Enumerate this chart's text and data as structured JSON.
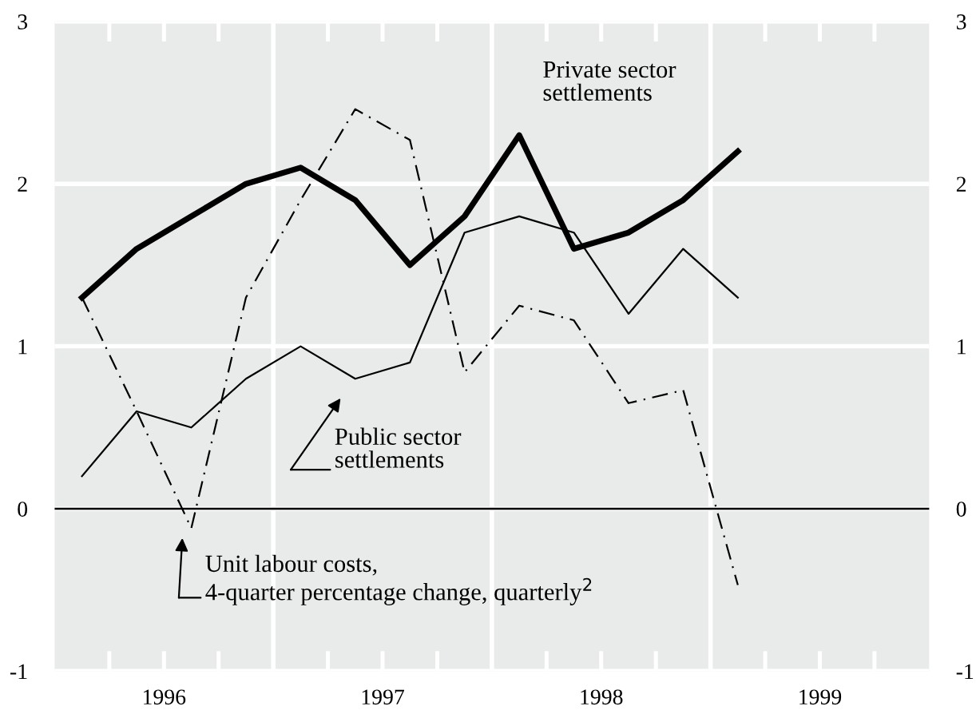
{
  "chart_data": {
    "type": "line",
    "x": [
      1996.125,
      1996.375,
      1996.625,
      1996.875,
      1997.125,
      1997.375,
      1997.625,
      1997.875,
      1998.125,
      1998.375,
      1998.625,
      1998.875,
      1999.125
    ],
    "series": [
      {
        "color": "#000000",
        "line_style": "solid",
        "values": [
          1.3,
          1.6,
          1.8,
          2.0,
          2.1,
          1.9,
          1.5,
          1.8,
          2.3,
          1.6,
          1.7,
          1.9,
          2.2
        ]
      },
      {
        "color": "#000000",
        "line_style": "solid",
        "values": [
          0.2,
          0.6,
          0.5,
          0.8,
          1.0,
          0.8,
          0.9,
          1.7,
          1.8,
          1.7,
          1.2,
          1.6,
          1.3
        ]
      },
      {
        "color": "#000000",
        "line_style": "dashdot",
        "values": [
          1.3,
          0.6,
          -0.12,
          1.3,
          1.9,
          2.46,
          2.27,
          0.84,
          1.25,
          1.16,
          0.65,
          0.73,
          -0.47
        ]
      }
    ],
    "annotations": [
      "Private sector\nsettlements",
      "Public sector\nsettlements",
      "Unit labour costs,\n4-quarter percentage change, quarterly$^{2}$"
    ],
    "xlim": [
      1996,
      2000
    ],
    "xticks": [
      {
        "value": 1996.25,
        "label": null
      },
      {
        "value": 1996.5,
        "label": "1996"
      },
      {
        "value": 1996.75,
        "label": null
      },
      {
        "value": 1997.25,
        "label": null
      },
      {
        "value": 1997.5,
        "label": "1997"
      },
      {
        "value": 1997.75,
        "label": null
      },
      {
        "value": 1998.25,
        "label": null
      },
      {
        "value": 1998.5,
        "label": "1998"
      },
      {
        "value": 1998.75,
        "label": null
      },
      {
        "value": 1999.25,
        "label": null
      },
      {
        "value": 1999.5,
        "label": "1999"
      },
      {
        "value": 1999.75,
        "label": null
      }
    ],
    "ylim": [
      -1,
      3
    ],
    "yticks": [
      -1,
      0,
      1,
      2,
      3
    ],
    "y2lim": [
      -1,
      3
    ],
    "y2ticks": [
      -1,
      0,
      1,
      2,
      3
    ],
    "grid": "y",
    "ref_lines": [
      {
        "axis": "y",
        "value": 0,
        "color": "#000000"
      },
      {
        "axis": "x",
        "value": 1997,
        "color": "#ffffff"
      },
      {
        "axis": "x",
        "value": 1998,
        "color": "#ffffff"
      },
      {
        "axis": "x",
        "value": 1999,
        "color": "#ffffff"
      }
    ]
  }
}
